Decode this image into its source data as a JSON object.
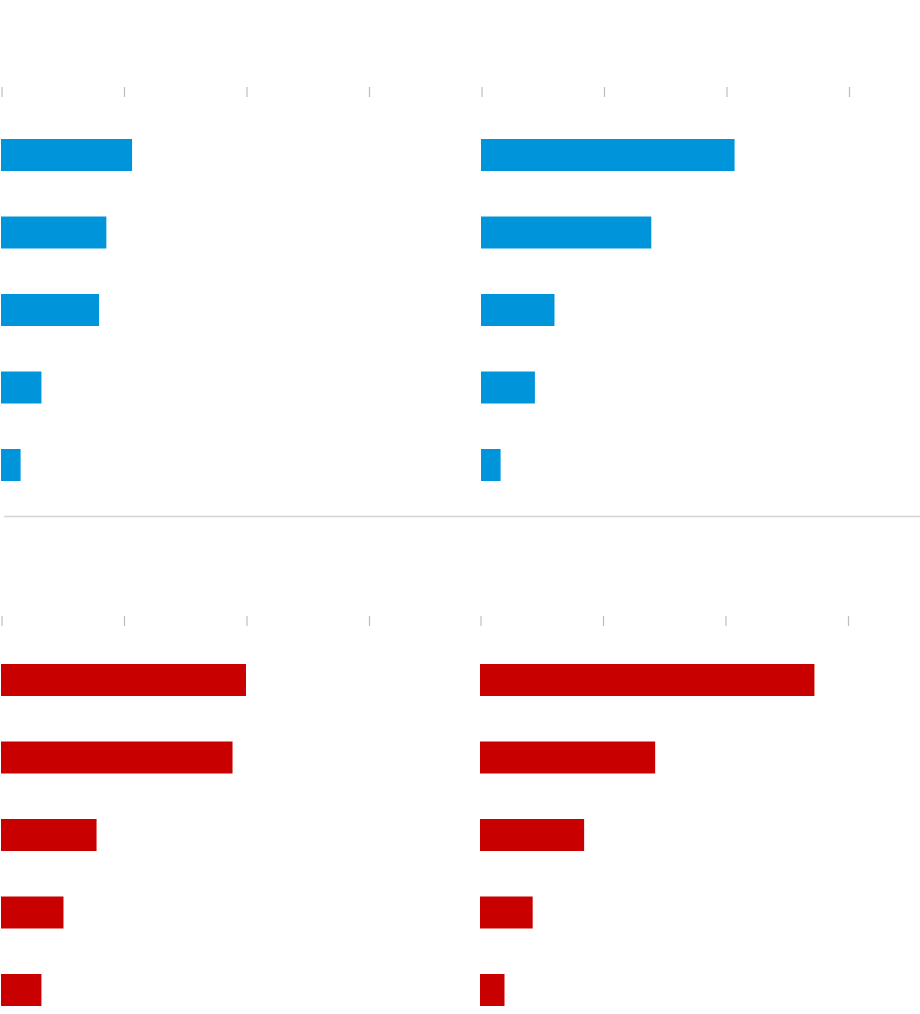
{
  "colors": {
    "blue": "#0095da",
    "red": "#c80000",
    "tick": "#bdbdbd",
    "divider": "#d4d4d4"
  },
  "chart_data": [
    {
      "type": "bar",
      "orientation": "horizontal",
      "panel": "top-left",
      "color": "#0095da",
      "xlim": [
        0,
        3.6
      ],
      "grid": false,
      "ticks": [
        0,
        1,
        2,
        3
      ],
      "series": [
        {
          "values": [
            1.07,
            0.86,
            0.8,
            0.33,
            0.16
          ]
        }
      ]
    },
    {
      "type": "bar",
      "orientation": "horizontal",
      "panel": "top-right",
      "color": "#0095da",
      "xlim": [
        0,
        3.6
      ],
      "grid": false,
      "ticks": [
        0,
        1,
        2,
        3
      ],
      "series": [
        {
          "values": [
            2.07,
            1.39,
            0.6,
            0.44,
            0.16
          ]
        }
      ]
    },
    {
      "type": "bar",
      "orientation": "horizontal",
      "panel": "bottom-left",
      "color": "#c80000",
      "xlim": [
        0,
        3.6
      ],
      "grid": false,
      "ticks": [
        0,
        1,
        2,
        3
      ],
      "series": [
        {
          "values": [
            2.0,
            1.89,
            0.78,
            0.51,
            0.33
          ]
        }
      ]
    },
    {
      "type": "bar",
      "orientation": "horizontal",
      "panel": "bottom-right",
      "color": "#c80000",
      "xlim": [
        0,
        3.6
      ],
      "grid": false,
      "ticks": [
        0,
        1,
        2,
        3
      ],
      "series": [
        {
          "values": [
            2.73,
            1.43,
            0.85,
            0.43,
            0.2
          ]
        }
      ]
    }
  ]
}
